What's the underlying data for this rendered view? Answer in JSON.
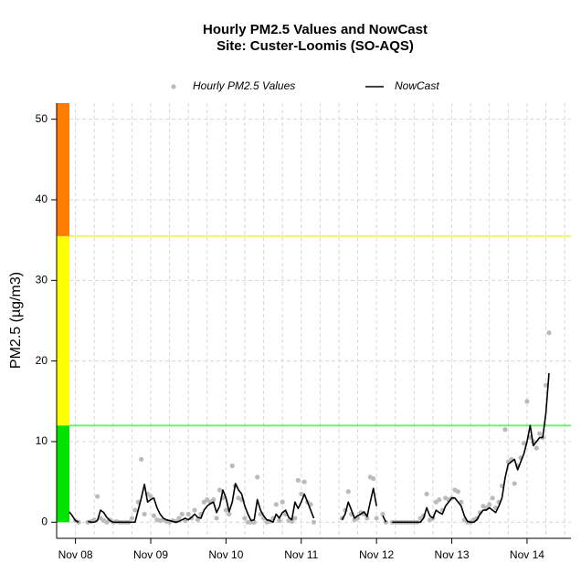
{
  "chart_data": {
    "type": "line",
    "title": "Hourly PM2.5 Values and NowCast",
    "subtitle": "Site: Custer-Loomis (SO-AQS)",
    "y_label": "PM2.5 (µg/m3)",
    "legend": "top",
    "grid": true,
    "xlim": [
      -6,
      158
    ],
    "ylim": [
      -2,
      52
    ],
    "yticks": [
      0,
      10,
      20,
      30,
      40,
      50
    ],
    "xticks": [
      {
        "value": 0,
        "label": "Nov 08"
      },
      {
        "value": 24,
        "label": "Nov 09"
      },
      {
        "value": 48,
        "label": "Nov 10"
      },
      {
        "value": 72,
        "label": "Nov 11"
      },
      {
        "value": 96,
        "label": "Nov 12"
      },
      {
        "value": 120,
        "label": "Nov 13"
      },
      {
        "value": 144,
        "label": "Nov 14"
      }
    ],
    "xgrid": [
      -6,
      0,
      6,
      12,
      18,
      24,
      30,
      36,
      42,
      48,
      54,
      60,
      66,
      72,
      78,
      84,
      90,
      96,
      102,
      108,
      114,
      120,
      126,
      132,
      138,
      144,
      150,
      156
    ],
    "aqi_bands": [
      {
        "min": 0,
        "max": 12,
        "color": "#00e400"
      },
      {
        "min": 12,
        "max": 35.5,
        "color": "#ffff00"
      },
      {
        "min": 35.5,
        "max": 55.5,
        "color": "#ff7e00"
      }
    ],
    "x": [
      -2,
      -1,
      0,
      1,
      2,
      3,
      4,
      5,
      6,
      7,
      8,
      9,
      10,
      11,
      12,
      13,
      14,
      15,
      16,
      17,
      18,
      19,
      20,
      21,
      22,
      23,
      24,
      25,
      26,
      27,
      28,
      29,
      30,
      31,
      32,
      33,
      34,
      35,
      36,
      37,
      38,
      39,
      40,
      41,
      42,
      43,
      44,
      45,
      46,
      47,
      48,
      49,
      50,
      51,
      52,
      53,
      54,
      55,
      56,
      57,
      58,
      59,
      60,
      61,
      62,
      63,
      64,
      65,
      66,
      67,
      68,
      69,
      70,
      71,
      72,
      73,
      74,
      75,
      76,
      77,
      78,
      79,
      80,
      81,
      82,
      83,
      84,
      85,
      86,
      87,
      88,
      89,
      90,
      91,
      92,
      93,
      94,
      95,
      96,
      97,
      98,
      99,
      100,
      101,
      102,
      103,
      104,
      105,
      106,
      107,
      108,
      109,
      110,
      111,
      112,
      113,
      114,
      115,
      116,
      117,
      118,
      119,
      120,
      121,
      122,
      123,
      124,
      125,
      126,
      127,
      128,
      129,
      130,
      131,
      132,
      133,
      134,
      135,
      136,
      137,
      138,
      139,
      140,
      141,
      142,
      143,
      144,
      145,
      146,
      147,
      148,
      149,
      150,
      151
    ],
    "series": [
      {
        "name": "Hourly PM2.5 Values",
        "color": "#bbbbbb",
        "style": "points",
        "values": [
          null,
          null,
          0.2,
          0,
          null,
          null,
          0,
          0.1,
          0.3,
          3.2,
          0.5,
          0.2,
          0,
          0.3,
          0,
          0.1,
          0,
          0,
          0,
          0,
          0.5,
          1.5,
          2.5,
          7.8,
          1,
          3.5,
          3.2,
          0.8,
          0.3,
          0.2,
          0.3,
          0.1,
          0,
          0.2,
          0.1,
          0.5,
          1,
          0.2,
          1,
          0.5,
          1.5,
          0.3,
          1,
          2.5,
          2.8,
          2.5,
          2.8,
          0.5,
          4,
          3,
          1.5,
          1,
          7,
          4.5,
          3,
          2.8,
          0.5,
          0,
          0,
          0,
          5.6,
          1,
          0.5,
          0,
          0.1,
          0.5,
          2.2,
          0.2,
          2.5,
          1,
          0.2,
          0.1,
          0.5,
          5.2,
          3.5,
          5,
          2.5,
          2.2,
          0,
          null,
          null,
          null,
          null,
          null,
          null,
          null,
          null,
          0.5,
          1.5,
          3.8,
          1,
          0.3,
          0.5,
          1.2,
          1,
          0.5,
          5.6,
          5.4,
          0.5,
          null,
          1,
          0,
          null,
          0,
          0,
          0,
          0,
          0,
          0,
          0,
          0,
          0,
          0.5,
          0.8,
          3.5,
          0.3,
          0.5,
          2.5,
          2.8,
          1.5,
          3,
          2.8,
          3,
          4,
          3.8,
          2.5,
          0.3,
          0,
          0,
          0.3,
          0.5,
          1.2,
          2,
          1.8,
          2.2,
          3,
          1.8,
          2.5,
          4.5,
          11.5,
          7.5,
          7.8,
          4.8,
          7,
          8,
          9.8,
          15,
          10.5,
          10,
          9.2,
          11,
          10.5,
          17,
          23.5
        ]
      },
      {
        "name": "NowCast",
        "color": "#000000",
        "style": "line",
        "values": [
          1.3,
          0.8,
          0.2,
          0,
          null,
          null,
          0.1,
          0,
          0,
          0.2,
          1.5,
          1.2,
          0.6,
          0.2,
          0,
          0,
          0,
          0,
          0,
          0,
          0,
          0,
          1.5,
          3,
          4.7,
          2.5,
          2.8,
          3,
          1.8,
          1,
          0.5,
          0.3,
          0.2,
          0.1,
          0,
          0.1,
          0.3,
          0.5,
          0.3,
          0.6,
          1,
          0.6,
          0.5,
          1.5,
          2,
          2.3,
          2.5,
          1.2,
          2,
          4,
          3,
          1.3,
          2.5,
          4.8,
          4,
          3.5,
          2,
          1,
          0.2,
          0.3,
          2.8,
          1.5,
          0.8,
          0.3,
          0.2,
          0,
          1,
          0.5,
          1.2,
          1.5,
          0.6,
          0.3,
          2.5,
          1.7,
          2.5,
          3.5,
          2.5,
          1.5,
          0.5,
          null,
          null,
          null,
          null,
          null,
          null,
          null,
          null,
          0.3,
          1,
          2.5,
          1.5,
          0.5,
          0.8,
          1,
          1.3,
          0.7,
          2.5,
          4.2,
          2,
          null,
          0.8,
          0,
          null,
          0,
          0,
          0,
          0,
          0,
          0,
          0,
          0,
          0,
          0,
          0.5,
          1.8,
          0.8,
          0.5,
          1.5,
          1.2,
          1,
          2,
          2.5,
          3,
          3,
          2.5,
          2,
          0.8,
          0.1,
          0,
          0,
          0.3,
          1,
          1.5,
          1.5,
          1.8,
          1.5,
          1.2,
          2,
          3,
          5.5,
          7.2,
          7.5,
          7.8,
          6.5,
          7.5,
          8.5,
          10,
          12,
          9.5,
          10,
          10.5,
          10.5,
          13.5,
          18.5
        ]
      }
    ]
  }
}
